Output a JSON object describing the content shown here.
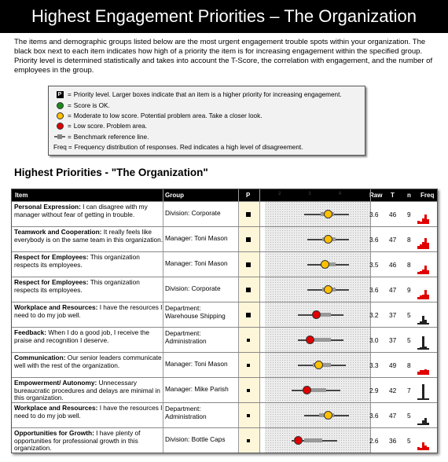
{
  "title": "Highest Engagement Priorities – The Organization",
  "intro": "The items and demographic groups listed below are the most urgent engagement trouble spots within your organization. The black box next to each item indicates how high of a priority the item is for increasing engagement within the specified group. Priority level is determined statistically and takes into account the T-Score, the correlation with engagement, and the number of employees in the group.",
  "legend": [
    {
      "symbol": "P",
      "icon": "priority-box-icon",
      "text": "Priority level. Larger boxes indicate that an item is a higher priority for increasing engagement."
    },
    {
      "symbol": "",
      "icon": "green-dot-icon",
      "color": "#1a8a1a",
      "text": "Score is OK."
    },
    {
      "symbol": "",
      "icon": "yellow-dot-icon",
      "color": "#ffc000",
      "text": "Moderate to low score. Potential problem area. Take a closer look."
    },
    {
      "symbol": "",
      "icon": "red-dot-icon",
      "color": "#e00000",
      "text": "Low score. Problem area."
    },
    {
      "symbol": "",
      "icon": "benchmark-icon",
      "text": "Benchmark reference line."
    },
    {
      "symbol": "Freq",
      "icon": "",
      "text": "Frequency distribution of responses. Red indicates a high level of disagreement."
    }
  ],
  "section_title": "Highest Priorities - \"The Organization\"",
  "columns": {
    "item": "Item",
    "group": "Group",
    "p": "P",
    "raw": "Raw",
    "t": "T",
    "n": "n",
    "freq": "Freq"
  },
  "scale_ticks": [
    "2",
    "3",
    "4"
  ],
  "scale_range": [
    1.5,
    5
  ],
  "colors": {
    "red": "#e00000",
    "yellow": "#ffc000",
    "freq_red": "#e00000",
    "freq_black": "#222222"
  },
  "rows": [
    {
      "category": "Personal Expression:",
      "text": "I can disagree with my manager without fear of getting in trouble.",
      "group": "Division: Corporate",
      "priority": 0.9,
      "score": 3.6,
      "status": "yellow",
      "bench_lo": 2.8,
      "bench_hi": 4.3,
      "box_lo": 3.35,
      "box_hi": 3.8,
      "raw": "3.6",
      "t": "46",
      "n": "9",
      "freq_color": "red",
      "freq": [
        0.2,
        0.15,
        0.35,
        0.6,
        0.3
      ]
    },
    {
      "category": "Teamwork and Cooperation:",
      "text": "It really feels like everybody is on the same team in this organization.",
      "group": "Manager: Toni Mason",
      "priority": 0.7,
      "score": 3.6,
      "status": "yellow",
      "bench_lo": 2.9,
      "bench_hi": 4.3,
      "box_lo": 3.4,
      "box_hi": 3.85,
      "raw": "3.6",
      "t": "47",
      "n": "8",
      "freq_color": "red",
      "freq": [
        0.2,
        0.3,
        0.45,
        0.7,
        0.4
      ]
    },
    {
      "category": "Respect for Employees:",
      "text": "This organization respects its employees.",
      "group": "Manager: Toni Mason",
      "priority": 0.7,
      "score": 3.5,
      "status": "yellow",
      "bench_lo": 2.9,
      "bench_hi": 4.3,
      "box_lo": 3.4,
      "box_hi": 3.85,
      "raw": "3.5",
      "t": "46",
      "n": "8",
      "freq_color": "red",
      "freq": [
        0.15,
        0.2,
        0.3,
        0.55,
        0.25
      ]
    },
    {
      "category": "Respect for Employees:",
      "text": "This organization respects its employees.",
      "group": "Division: Corporate",
      "priority": 0.7,
      "score": 3.6,
      "status": "yellow",
      "bench_lo": 2.9,
      "bench_hi": 4.3,
      "box_lo": 3.4,
      "box_hi": 3.85,
      "raw": "3.6",
      "t": "47",
      "n": "9",
      "freq_color": "red",
      "freq": [
        0.15,
        0.25,
        0.3,
        0.6,
        0.3
      ]
    },
    {
      "category": "Workplace and Resources:",
      "text": "I have the resources I need to do my job well.",
      "group": "Department: Warehouse Shipping",
      "priority": 0.7,
      "score": 3.2,
      "status": "red",
      "bench_lo": 2.6,
      "bench_hi": 4.1,
      "box_lo": 3.2,
      "box_hi": 3.7,
      "raw": "3.2",
      "t": "37",
      "n": "5",
      "freq_color": "black",
      "freq": [
        0.1,
        0.2,
        0.55,
        0.3,
        0.1
      ]
    },
    {
      "category": "Feedback:",
      "text": "When I do a good job, I receive the praise and recognition I deserve.",
      "group": "Department: Administration",
      "priority": 0.6,
      "score": 3.0,
      "status": "red",
      "bench_lo": 2.6,
      "bench_hi": 4.1,
      "box_lo": 3.15,
      "box_hi": 3.7,
      "raw": "3.0",
      "t": "37",
      "n": "5",
      "freq_color": "black",
      "freq": [
        0.1,
        0.15,
        0.85,
        0.2,
        0.1
      ]
    },
    {
      "category": "Communication:",
      "text": "Our senior leaders communicate well with the rest of the organization.",
      "group": "Manager: Toni Mason",
      "priority": 0.6,
      "score": 3.3,
      "status": "yellow",
      "bench_lo": 2.6,
      "bench_hi": 4.2,
      "box_lo": 3.1,
      "box_hi": 3.7,
      "raw": "3.3",
      "t": "49",
      "n": "8",
      "freq_color": "red",
      "freq": [
        0.2,
        0.3,
        0.3,
        0.35,
        0.3
      ]
    },
    {
      "category": "Empowerment/ Autonomy:",
      "text": "Unnecessary bureaucratic procedures and delays are minimal in this organization.",
      "group": "Manager: Mike Parish",
      "priority": 0.5,
      "score": 2.9,
      "status": "red",
      "bench_lo": 2.4,
      "bench_hi": 4.0,
      "box_lo": 2.9,
      "box_hi": 3.55,
      "raw": "2.9",
      "t": "42",
      "n": "7",
      "freq_color": "black",
      "freq": [
        0.1,
        0.1,
        1.0,
        0.1,
        0.1
      ]
    },
    {
      "category": "Workplace and Resources:",
      "text": "I have the resources I need to do my job well.",
      "group": "Department: Administration",
      "priority": 0.5,
      "score": 3.6,
      "status": "yellow",
      "bench_lo": 2.8,
      "bench_hi": 4.3,
      "box_lo": 3.3,
      "box_hi": 3.8,
      "raw": "3.6",
      "t": "47",
      "n": "5",
      "freq_color": "black",
      "freq": [
        0.1,
        0.1,
        0.3,
        0.45,
        0.15
      ]
    },
    {
      "category": "Opportunities for Growth:",
      "text": "I have plenty of opportunities for professional growth in this organization.",
      "group": "Division: Bottle Caps",
      "priority": 0.5,
      "score": 2.6,
      "status": "red",
      "bench_lo": 2.4,
      "bench_hi": 3.9,
      "box_lo": 2.8,
      "box_hi": 3.4,
      "raw": "2.6",
      "t": "36",
      "n": "5",
      "freq_color": "red",
      "freq": [
        0.2,
        0.15,
        0.5,
        0.3,
        0.2
      ]
    }
  ]
}
